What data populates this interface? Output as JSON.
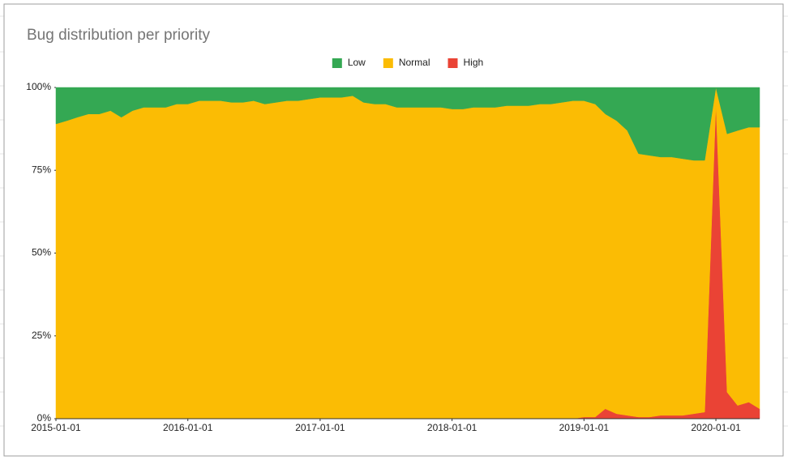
{
  "chart_data": {
    "type": "stacked_area_percent",
    "title": "Bug distribution per priority",
    "x": [
      "2015-01-01",
      "2015-02-01",
      "2015-03-01",
      "2015-04-01",
      "2015-05-01",
      "2015-06-01",
      "2015-07-01",
      "2015-08-01",
      "2015-09-01",
      "2015-10-01",
      "2015-11-01",
      "2015-12-01",
      "2016-01-01",
      "2016-02-01",
      "2016-03-01",
      "2016-04-01",
      "2016-05-01",
      "2016-06-01",
      "2016-07-01",
      "2016-08-01",
      "2016-09-01",
      "2016-10-01",
      "2016-11-01",
      "2016-12-01",
      "2017-01-01",
      "2017-02-01",
      "2017-03-01",
      "2017-04-01",
      "2017-05-01",
      "2017-06-01",
      "2017-07-01",
      "2017-08-01",
      "2017-09-01",
      "2017-10-01",
      "2017-11-01",
      "2017-12-01",
      "2018-01-01",
      "2018-02-01",
      "2018-03-01",
      "2018-04-01",
      "2018-05-01",
      "2018-06-01",
      "2018-07-01",
      "2018-08-01",
      "2018-09-01",
      "2018-10-01",
      "2018-11-01",
      "2018-12-01",
      "2019-01-01",
      "2019-02-01",
      "2019-03-01",
      "2019-04-01",
      "2019-05-01",
      "2019-06-01",
      "2019-07-01",
      "2019-08-01",
      "2019-09-01",
      "2019-10-01",
      "2019-11-01",
      "2019-12-01",
      "2020-01-01",
      "2020-02-01",
      "2020-03-01",
      "2020-04-01",
      "2020-05-01"
    ],
    "series": [
      {
        "name": "Low",
        "color": "#34a853",
        "values": [
          11,
          10,
          9,
          8,
          8,
          7,
          9,
          7,
          6,
          6,
          6,
          5,
          5,
          4,
          4,
          4,
          4.5,
          4.5,
          4,
          5,
          4.5,
          4,
          4,
          3.5,
          3,
          3,
          3,
          2.5,
          4.5,
          5,
          5,
          6,
          6,
          6,
          6,
          6,
          6.5,
          6.5,
          6,
          6,
          6,
          5.5,
          5.5,
          5.5,
          5,
          5,
          4.5,
          4,
          4,
          5,
          8,
          10,
          13,
          20,
          20.5,
          21,
          21,
          21.5,
          22,
          22,
          0,
          14,
          13,
          12,
          12
        ]
      },
      {
        "name": "Normal",
        "color": "#fbbc04",
        "values": [
          89,
          90,
          91,
          92,
          92,
          93,
          91,
          93,
          94,
          94,
          94,
          95,
          95,
          96,
          96,
          96,
          95.5,
          95.5,
          96,
          95,
          95.5,
          96,
          96,
          96.5,
          97,
          97,
          97,
          97.5,
          95.5,
          95,
          95,
          94,
          94,
          94,
          94,
          94,
          93.5,
          93.5,
          94,
          94,
          94,
          94.5,
          94.5,
          94.5,
          95,
          95,
          95.5,
          96,
          95.5,
          94.5,
          89,
          88.5,
          86,
          79.5,
          79,
          78,
          78,
          77.5,
          76.5,
          76,
          5,
          78,
          83,
          83,
          85
        ]
      },
      {
        "name": "High",
        "color": "#ea4335",
        "values": [
          0,
          0,
          0,
          0,
          0,
          0,
          0,
          0,
          0,
          0,
          0,
          0,
          0,
          0,
          0,
          0,
          0,
          0,
          0,
          0,
          0,
          0,
          0,
          0,
          0,
          0,
          0,
          0,
          0,
          0,
          0,
          0,
          0,
          0,
          0,
          0,
          0,
          0,
          0,
          0,
          0,
          0,
          0,
          0,
          0,
          0,
          0,
          0,
          0.5,
          0.5,
          3,
          1.5,
          1,
          0.5,
          0.5,
          1,
          1,
          1,
          1.5,
          2,
          95,
          8,
          4,
          5,
          3
        ]
      }
    ],
    "xlim": [
      "2015-01-01",
      "2020-05-01"
    ],
    "xticks": [
      "2015-01-01",
      "2016-01-01",
      "2017-01-01",
      "2018-01-01",
      "2019-01-01",
      "2020-01-01"
    ],
    "ylim": [
      0,
      100
    ],
    "yticks": [
      {
        "value": 0,
        "label": "0%"
      },
      {
        "value": 25,
        "label": "25%"
      },
      {
        "value": 50,
        "label": "50%"
      },
      {
        "value": 75,
        "label": "75%"
      },
      {
        "value": 100,
        "label": "100%"
      }
    ],
    "legend": "top"
  }
}
